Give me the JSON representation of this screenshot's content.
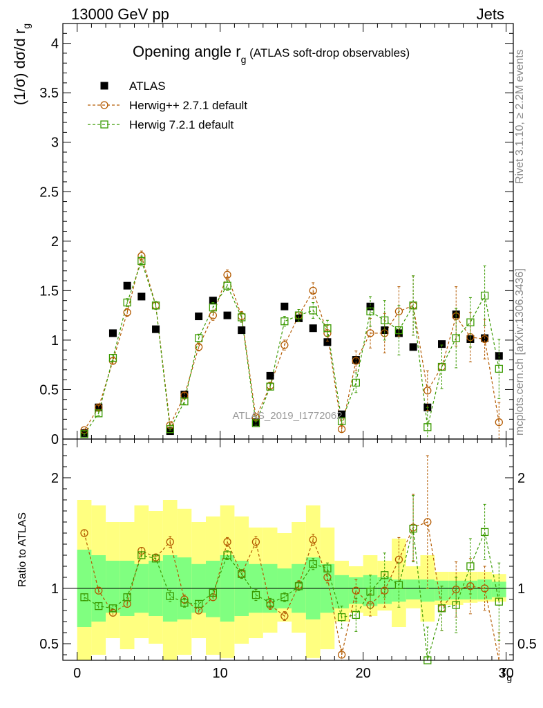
{
  "header": {
    "left": "13000 GeV pp",
    "right": "Jets"
  },
  "side_text": {
    "rivet": "Rivet 3.1.10, ≥ 2.2M events",
    "mcplots": "mcplots.cern.ch [arXiv:1306.3436]"
  },
  "watermark": "ATLAS_2019_I1772062",
  "chart_data": [
    {
      "type": "scatter",
      "panel": "main",
      "title": "Opening angle r_g (ATLAS soft-drop observables)",
      "title_main": "Opening angle r",
      "title_sub": "g",
      "title_extra": " (ATLAS soft-drop observables)",
      "ylabel": "(1/σ) dσ/d r_g",
      "xlim": [
        -1,
        30.5
      ],
      "ylim": [
        0,
        4.2
      ],
      "yticks": [
        0,
        0.5,
        1,
        1.5,
        2,
        2.5,
        3,
        3.5,
        4
      ],
      "ytick_labels": [
        "0",
        "0.5",
        "1",
        "1.5",
        "2",
        "2.5",
        "3",
        "3.5",
        "4"
      ],
      "legend_position": "top-left",
      "legend": [
        "ATLAS",
        "Herwig++ 2.7.1 default",
        "Herwig 7.2.1 default"
      ],
      "x": [
        0.5,
        1.5,
        2.5,
        3.5,
        4.5,
        5.5,
        6.5,
        7.5,
        8.5,
        9.5,
        10.5,
        11.5,
        12.5,
        13.5,
        14.5,
        15.5,
        16.5,
        17.5,
        18.5,
        19.5,
        20.5,
        21.5,
        22.5,
        23.5,
        24.5,
        25.5,
        26.5,
        27.5,
        28.5,
        29.5
      ],
      "series": [
        {
          "name": "ATLAS",
          "color": "#000000",
          "marker": "square-filled",
          "values": [
            0.06,
            0.32,
            1.07,
            1.55,
            1.44,
            1.11,
            0.08,
            0.45,
            1.24,
            1.4,
            1.25,
            1.1,
            0.17,
            0.64,
            1.34,
            1.22,
            1.12,
            0.98,
            0.25,
            0.8,
            1.34,
            1.1,
            1.07,
            0.93,
            0.32,
            0.96,
            1.26,
            1.01,
            1.02,
            0.84
          ],
          "errors": [
            0.01,
            0.02,
            0.03,
            0.03,
            0.03,
            0.03,
            0.01,
            0.02,
            0.03,
            0.03,
            0.03,
            0.03,
            0.01,
            0.02,
            0.03,
            0.03,
            0.03,
            0.03,
            0.02,
            0.03,
            0.04,
            0.04,
            0.04,
            0.05,
            0.04,
            0.05,
            0.06,
            0.06,
            0.07,
            0.08
          ]
        },
        {
          "name": "Herwig++ 2.7.1 default",
          "color": "#b35a00",
          "marker": "circle-open",
          "values": [
            0.09,
            0.32,
            0.79,
            1.28,
            1.85,
            1.35,
            0.14,
            0.44,
            0.93,
            1.25,
            1.66,
            1.24,
            0.22,
            0.54,
            0.95,
            1.25,
            1.5,
            1.07,
            0.1,
            0.79,
            1.07,
            1.07,
            1.29,
            1.35,
            0.49,
            0.73,
            1.24,
            1.03,
            1.01,
            0.17
          ],
          "errors": [
            0.01,
            0.02,
            0.03,
            0.04,
            0.05,
            0.04,
            0.01,
            0.03,
            0.04,
            0.05,
            0.05,
            0.05,
            0.02,
            0.03,
            0.05,
            0.06,
            0.08,
            0.08,
            0.03,
            0.1,
            0.15,
            0.2,
            0.25,
            0.3,
            0.2,
            0.22,
            0.3,
            0.25,
            0.2,
            0.2
          ]
        },
        {
          "name": "Herwig 7.2.1 default",
          "color": "#3a9a00",
          "marker": "square-open",
          "values": [
            0.05,
            0.26,
            0.82,
            1.38,
            1.8,
            1.35,
            0.1,
            0.38,
            1.02,
            1.33,
            1.55,
            1.23,
            0.16,
            0.53,
            1.19,
            1.25,
            1.3,
            1.12,
            0.18,
            0.57,
            1.29,
            1.2,
            1.1,
            1.35,
            0.12,
            0.73,
            1.02,
            1.18,
            1.45,
            0.71
          ],
          "errors": [
            0.01,
            0.02,
            0.03,
            0.04,
            0.05,
            0.04,
            0.01,
            0.03,
            0.04,
            0.05,
            0.05,
            0.05,
            0.02,
            0.03,
            0.05,
            0.06,
            0.08,
            0.08,
            0.03,
            0.1,
            0.15,
            0.2,
            0.25,
            0.3,
            0.2,
            0.22,
            0.3,
            0.25,
            0.3,
            0.3
          ]
        }
      ]
    },
    {
      "type": "scatter",
      "panel": "ratio",
      "xlabel": "r_g",
      "xlabel_main": "r",
      "xlabel_sub": "g",
      "ylabel": "Ratio to ATLAS",
      "xlim": [
        -1,
        30.5
      ],
      "ylim": [
        0.35,
        2.35
      ],
      "xticks": [
        0,
        10,
        20,
        30
      ],
      "xtick_labels": [
        "0",
        "10",
        "20",
        "30"
      ],
      "yticks": [
        0.5,
        1,
        2
      ],
      "ytick_labels": [
        "0.5",
        "1",
        "2"
      ],
      "x": [
        0.5,
        1.5,
        2.5,
        3.5,
        4.5,
        5.5,
        6.5,
        7.5,
        8.5,
        9.5,
        10.5,
        11.5,
        12.5,
        13.5,
        14.5,
        15.5,
        16.5,
        17.5,
        18.5,
        19.5,
        20.5,
        21.5,
        22.5,
        23.5,
        24.5,
        25.5,
        26.5,
        27.5,
        28.5,
        29.5
      ],
      "bands": {
        "colors": {
          "outer": "#ffff80",
          "inner": "#80ff80"
        },
        "inner_lo": [
          0.65,
          0.7,
          0.78,
          0.75,
          0.78,
          0.75,
          0.7,
          0.72,
          0.78,
          0.74,
          0.7,
          0.75,
          0.78,
          0.78,
          0.82,
          0.78,
          0.72,
          0.78,
          0.82,
          0.86,
          0.84,
          0.86,
          0.88,
          0.9,
          0.88,
          0.89,
          0.9,
          0.9,
          0.9,
          0.92
        ],
        "inner_hi": [
          1.35,
          1.3,
          1.25,
          1.25,
          1.22,
          1.25,
          1.3,
          1.28,
          1.22,
          1.25,
          1.3,
          1.25,
          1.22,
          1.22,
          1.18,
          1.22,
          1.28,
          1.22,
          1.12,
          1.1,
          1.12,
          1.1,
          1.08,
          1.08,
          1.08,
          1.07,
          1.07,
          1.07,
          1.08,
          1.06
        ],
        "outer_lo": [
          0.35,
          0.4,
          0.55,
          0.45,
          0.55,
          0.5,
          0.35,
          0.4,
          0.55,
          0.4,
          0.37,
          0.5,
          0.55,
          0.6,
          0.7,
          0.6,
          0.37,
          0.45,
          0.7,
          0.78,
          0.75,
          0.8,
          0.65,
          0.82,
          0.7,
          0.85,
          0.85,
          0.87,
          0.88,
          0.88
        ],
        "outer_hi": [
          1.8,
          1.75,
          1.6,
          1.6,
          1.75,
          1.7,
          1.8,
          1.72,
          1.6,
          1.65,
          1.75,
          1.65,
          1.55,
          1.55,
          1.5,
          1.6,
          1.75,
          1.55,
          1.25,
          1.2,
          1.3,
          1.25,
          1.45,
          1.2,
          1.3,
          1.15,
          1.15,
          1.15,
          1.15,
          1.13
        ]
      },
      "series": [
        {
          "name": "Herwig++ 2.7.1 default",
          "color": "#b35a00",
          "values": [
            1.5,
            0.98,
            0.78,
            0.86,
            1.34,
            1.28,
            1.42,
            0.9,
            0.8,
            0.92,
            1.42,
            1.13,
            1.42,
            0.85,
            0.75,
            1.03,
            1.44,
            1.1,
            0.4,
            0.98,
            0.85,
            0.98,
            1.26,
            1.55,
            1.6,
            0.82,
            0.99,
            1.02,
            1.0,
            0.3
          ],
          "errors": [
            0.03,
            0.03,
            0.03,
            0.03,
            0.03,
            0.03,
            0.05,
            0.04,
            0.03,
            0.03,
            0.04,
            0.04,
            0.05,
            0.04,
            0.04,
            0.04,
            0.05,
            0.05,
            0.05,
            0.1,
            0.1,
            0.15,
            0.2,
            0.3,
            0.6,
            0.2,
            0.25,
            0.25,
            0.2,
            0.3
          ]
        },
        {
          "name": "Herwig 7.2.1 default",
          "color": "#3a9a00",
          "values": [
            0.92,
            0.84,
            0.82,
            0.92,
            1.3,
            1.27,
            0.93,
            0.87,
            0.86,
            0.96,
            1.3,
            1.13,
            0.94,
            0.87,
            0.92,
            1.02,
            1.22,
            1.18,
            0.74,
            0.76,
            0.97,
            1.12,
            1.03,
            1.54,
            0.35,
            0.82,
            0.85,
            1.2,
            1.51,
            0.88
          ],
          "errors": [
            0.03,
            0.03,
            0.03,
            0.03,
            0.03,
            0.03,
            0.05,
            0.04,
            0.03,
            0.03,
            0.04,
            0.04,
            0.05,
            0.04,
            0.04,
            0.04,
            0.05,
            0.05,
            0.1,
            0.15,
            0.15,
            0.2,
            0.2,
            0.3,
            0.3,
            0.2,
            0.25,
            0.25,
            0.25,
            0.35
          ]
        }
      ]
    }
  ]
}
